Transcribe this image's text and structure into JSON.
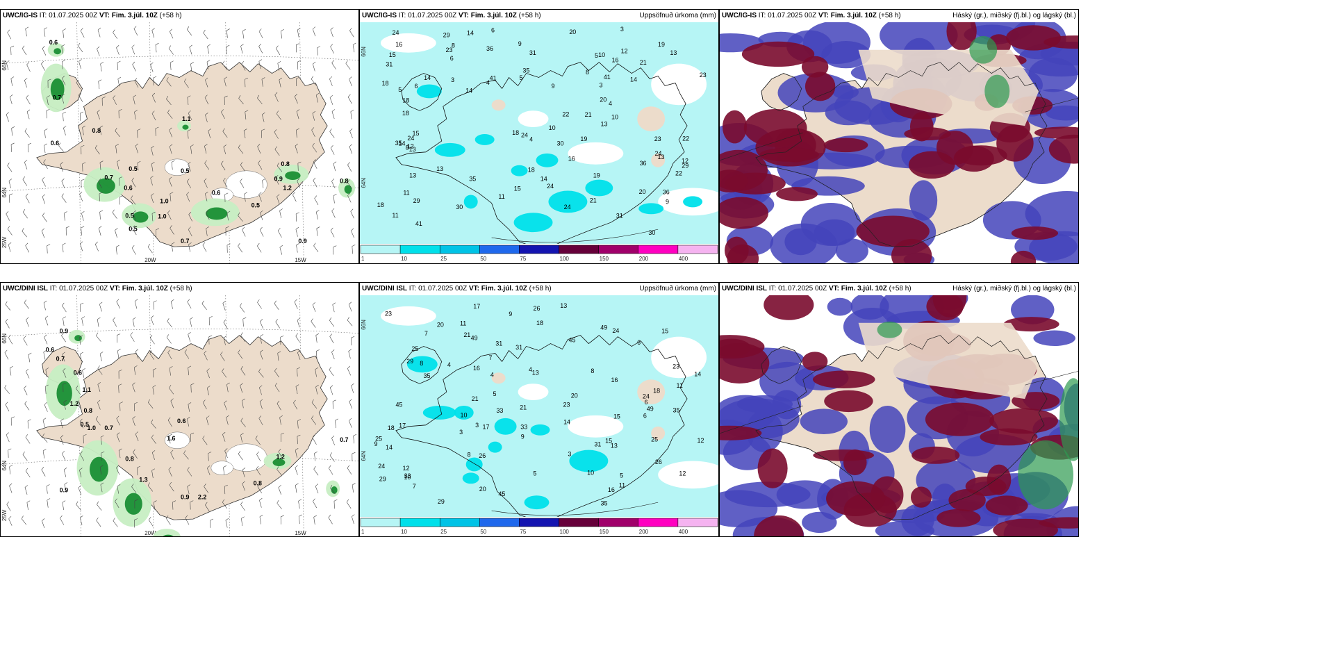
{
  "colors": {
    "land": "#ecdccb",
    "light_precip": "#b6f5f5",
    "precip_10": "#00e0ea",
    "precip_25": "#00c3e6",
    "precip_50": "#1f68ec",
    "precip_75": "#1414b0",
    "precip_100": "#66003a",
    "precip_150": "#a0006a",
    "precip_200": "#ff00c0",
    "precip_400": "#f5b3f0",
    "cloud_high": "#2e9a50",
    "cloud_mid": "#7a0b2e",
    "cloud_low": "#4444bb",
    "wind_precip_light": "#c7eec3",
    "wind_precip_heavy": "#118a2c"
  },
  "panels": [
    {
      "model": "UWC/IG-IS",
      "it_label": "IT:",
      "it_value": "01.07.2025 00Z",
      "vt_label": "VT:",
      "vt_value": "Fim. 3.júl. 10Z",
      "lead": "(+58 h)",
      "right_title": "",
      "type": "wind",
      "axis_labels": {
        "lat_top": "66N",
        "lat_mid": "64N",
        "lon_left": "25W",
        "lon_mid": "20W",
        "lon_right": "15W"
      },
      "labels": [
        "0.6",
        "0.8",
        "0.7",
        "0.6",
        "0.5",
        "0.5",
        "1.1",
        "1.0",
        "0.5",
        "0.7",
        "0.6",
        "0.5",
        "0.9",
        "0.8",
        "1.2",
        "0.5",
        "1.0",
        "0.6",
        "0.7",
        "0.8",
        "0.9"
      ]
    },
    {
      "model": "UWC/IG-IS",
      "it_label": "IT:",
      "it_value": "01.07.2025 00Z",
      "vt_label": "VT:",
      "vt_value": "Fim. 3.júl. 10Z",
      "lead": "(+58 h)",
      "right_title": "Uppsöfnuð úrkoma (mm)",
      "type": "precip",
      "axis_labels": {
        "lat_top": "66N",
        "lat_mid": "64N"
      },
      "labels": [
        "3",
        "10",
        "11",
        "13",
        "15",
        "24",
        "9",
        "18",
        "16",
        "20",
        "21",
        "22",
        "23",
        "14",
        "31",
        "12",
        "30",
        "35",
        "29",
        "36",
        "18",
        "24",
        "41",
        "19",
        "13",
        "14",
        "8",
        "5",
        "6",
        "4"
      ]
    },
    {
      "model": "UWC/IG-IS",
      "it_label": "IT:",
      "it_value": "01.07.2025 00Z",
      "vt_label": "VT:",
      "vt_value": "Fim. 3.júl. 10Z",
      "lead": "(+58 h)",
      "right_title": "Háský (gr.), miðský (fj.bl.) og lágský (bl.)",
      "type": "cloud"
    },
    {
      "model": "UWC/DINI ISL",
      "it_label": "IT:",
      "it_value": "01.07.2025 00Z",
      "vt_label": "VT:",
      "vt_value": "Fim. 3.júl. 10Z",
      "lead": "(+58 h)",
      "right_title": "",
      "type": "wind",
      "axis_labels": {
        "lat_top": "66N",
        "lat_mid": "64N",
        "lon_left": "25W",
        "lon_mid": "20W",
        "lon_right": "15W"
      },
      "labels": [
        "0.9",
        "0.6",
        "0.7",
        "1.2",
        "0.6",
        "1.1",
        "0.8",
        "0.5",
        "1.0",
        "0.7",
        "0.9",
        "0.8",
        "1.3",
        "0.6",
        "2.2",
        "0.9",
        "1.2",
        "0.7",
        "0.8",
        "1.6"
      ]
    },
    {
      "model": "UWC/DINI ISL",
      "it_label": "IT:",
      "it_value": "01.07.2025 00Z",
      "vt_label": "VT:",
      "vt_value": "Fim. 3.júl. 10Z",
      "lead": "(+58 h)",
      "right_title": "Uppsöfnuð úrkoma (mm)",
      "type": "precip",
      "axis_labels": {
        "lat_top": "66N",
        "lat_mid": "64N"
      },
      "labels": [
        "3",
        "26",
        "31",
        "14",
        "21",
        "16",
        "13",
        "20",
        "35",
        "17",
        "25",
        "23",
        "18",
        "24",
        "45",
        "49",
        "33",
        "29",
        "10",
        "12",
        "15",
        "11",
        "9",
        "8",
        "7",
        "6",
        "5",
        "4"
      ]
    },
    {
      "model": "UWC/DINI ISL",
      "it_label": "IT:",
      "it_value": "01.07.2025 00Z",
      "vt_label": "VT:",
      "vt_value": "Fim. 3.júl. 10Z",
      "lead": "(+58 h)",
      "right_title": "Háský (gr.), miðský (fj.bl.) og lágský (bl.)",
      "type": "cloud"
    }
  ],
  "colorbar": {
    "ticks": [
      "1",
      "10",
      "25",
      "50",
      "75",
      "100",
      "150",
      "200",
      "400"
    ]
  }
}
